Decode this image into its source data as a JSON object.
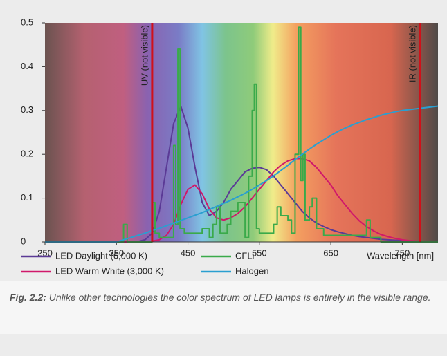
{
  "chart_data": {
    "type": "line",
    "x_label": "Wavelength [nm]",
    "xlim": [
      250,
      800
    ],
    "xticks": [
      250,
      350,
      450,
      550,
      650,
      750
    ],
    "ylim": [
      0,
      0.5
    ],
    "yticks": [
      0,
      0.1,
      0.2,
      0.3,
      0.4,
      0.5
    ],
    "annotations": [
      {
        "x": 400,
        "label": "UV (not visible)",
        "color": "#d0101a"
      },
      {
        "x": 775,
        "label": "IR (not visible)",
        "color": "#d0101a"
      }
    ],
    "series": [
      {
        "name": "LED Daylight (6,000 K)",
        "color": "#5b3a96",
        "x": [
          250,
          260,
          270,
          280,
          290,
          300,
          310,
          320,
          330,
          340,
          350,
          360,
          370,
          380,
          390,
          400,
          410,
          420,
          430,
          440,
          450,
          460,
          470,
          480,
          490,
          500,
          510,
          520,
          530,
          540,
          550,
          560,
          570,
          580,
          590,
          600,
          610,
          620,
          630,
          640,
          650,
          660,
          670,
          680,
          690,
          700,
          710,
          720,
          730,
          740,
          750,
          760,
          770,
          780,
          790,
          800
        ],
        "values": [
          0,
          0,
          0,
          0,
          0,
          0,
          0,
          0,
          0,
          0,
          0,
          0,
          0,
          0.001,
          0.005,
          0.02,
          0.07,
          0.17,
          0.27,
          0.31,
          0.26,
          0.17,
          0.09,
          0.06,
          0.07,
          0.09,
          0.12,
          0.14,
          0.16,
          0.168,
          0.17,
          0.165,
          0.15,
          0.13,
          0.11,
          0.09,
          0.07,
          0.055,
          0.043,
          0.035,
          0.028,
          0.023,
          0.019,
          0.015,
          0.012,
          0.01,
          0.008,
          0.006,
          0.005,
          0.004,
          0.003,
          0.002,
          0.001,
          0.001,
          0,
          0
        ]
      },
      {
        "name": "LED Warm White (3,000 K)",
        "color": "#d0186a",
        "x": [
          250,
          260,
          270,
          280,
          290,
          300,
          310,
          320,
          330,
          340,
          350,
          360,
          370,
          380,
          390,
          400,
          410,
          420,
          430,
          440,
          450,
          460,
          470,
          480,
          490,
          500,
          510,
          520,
          530,
          540,
          550,
          560,
          570,
          580,
          590,
          600,
          610,
          620,
          630,
          640,
          650,
          660,
          670,
          680,
          690,
          700,
          710,
          720,
          730,
          740,
          750,
          760,
          770,
          780,
          790,
          800
        ],
        "values": [
          0,
          0,
          0,
          0,
          0,
          0,
          0,
          0,
          0,
          0,
          0,
          0,
          0,
          0,
          0,
          0.002,
          0.005,
          0.015,
          0.04,
          0.085,
          0.12,
          0.13,
          0.11,
          0.075,
          0.055,
          0.05,
          0.055,
          0.065,
          0.08,
          0.1,
          0.12,
          0.14,
          0.16,
          0.175,
          0.185,
          0.19,
          0.19,
          0.185,
          0.17,
          0.15,
          0.13,
          0.105,
          0.085,
          0.065,
          0.048,
          0.035,
          0.025,
          0.017,
          0.012,
          0.008,
          0.005,
          0.003,
          0.002,
          0.001,
          0,
          0
        ]
      },
      {
        "name": "CFLi",
        "color": "#3aaa4a",
        "x": [
          250,
          360,
          360,
          365,
          365,
          400,
          400,
          404,
          404,
          410,
          410,
          430,
          430,
          433,
          433,
          436,
          436,
          439,
          439,
          445,
          445,
          470,
          470,
          480,
          480,
          485,
          485,
          490,
          490,
          495,
          495,
          505,
          505,
          510,
          510,
          520,
          520,
          530,
          530,
          535,
          535,
          540,
          540,
          543,
          543,
          546,
          546,
          550,
          550,
          570,
          570,
          575,
          575,
          580,
          580,
          590,
          590,
          595,
          595,
          600,
          600,
          605,
          605,
          608,
          608,
          611,
          611,
          614,
          614,
          620,
          620,
          624,
          624,
          630,
          630,
          640,
          640,
          700,
          700,
          705,
          705,
          720,
          720,
          800
        ],
        "values": [
          0,
          0,
          0.04,
          0.04,
          0,
          0,
          0.09,
          0.09,
          0.02,
          0.02,
          0.01,
          0.01,
          0.22,
          0.22,
          0.04,
          0.04,
          0.44,
          0.44,
          0.03,
          0.03,
          0.02,
          0.02,
          0.03,
          0.03,
          0.01,
          0.01,
          0.04,
          0.04,
          0.08,
          0.08,
          0.02,
          0.02,
          0.04,
          0.04,
          0.07,
          0.07,
          0.09,
          0.09,
          0.01,
          0.01,
          0.15,
          0.15,
          0.3,
          0.3,
          0.36,
          0.36,
          0.03,
          0.03,
          0.02,
          0.02,
          0.04,
          0.04,
          0.08,
          0.08,
          0.06,
          0.06,
          0.05,
          0.05,
          0.02,
          0.02,
          0.2,
          0.2,
          0.49,
          0.49,
          0.14,
          0.14,
          0.2,
          0.2,
          0.05,
          0.05,
          0.08,
          0.08,
          0.1,
          0.1,
          0.03,
          0.03,
          0.015,
          0.015,
          0.05,
          0.05,
          0.01,
          0.01,
          0,
          0
        ]
      },
      {
        "name": "Halogen",
        "color": "#2a9fd0",
        "x": [
          250,
          260,
          270,
          280,
          290,
          300,
          310,
          320,
          330,
          340,
          350,
          360,
          370,
          380,
          390,
          400,
          410,
          420,
          430,
          440,
          450,
          460,
          470,
          480,
          490,
          500,
          510,
          520,
          530,
          540,
          550,
          560,
          570,
          580,
          590,
          600,
          610,
          620,
          630,
          640,
          650,
          660,
          670,
          680,
          690,
          700,
          710,
          720,
          730,
          740,
          750,
          760,
          770,
          780,
          790,
          800
        ],
        "values": [
          0,
          0,
          0,
          0,
          0,
          0,
          0,
          0,
          0,
          0,
          0,
          0.005,
          0.01,
          0.015,
          0.02,
          0.026,
          0.031,
          0.037,
          0.043,
          0.049,
          0.055,
          0.061,
          0.067,
          0.074,
          0.081,
          0.088,
          0.095,
          0.103,
          0.111,
          0.12,
          0.13,
          0.14,
          0.151,
          0.163,
          0.175,
          0.188,
          0.2,
          0.212,
          0.223,
          0.233,
          0.243,
          0.252,
          0.26,
          0.267,
          0.273,
          0.279,
          0.284,
          0.289,
          0.293,
          0.297,
          0.3,
          0.302,
          0.304,
          0.306,
          0.308,
          0.31
        ]
      }
    ],
    "caption": {
      "label": "Fig. 2.2:",
      "text": "Unlike other technologies the color spectrum of LED lamps is entirely in the visible range."
    }
  }
}
